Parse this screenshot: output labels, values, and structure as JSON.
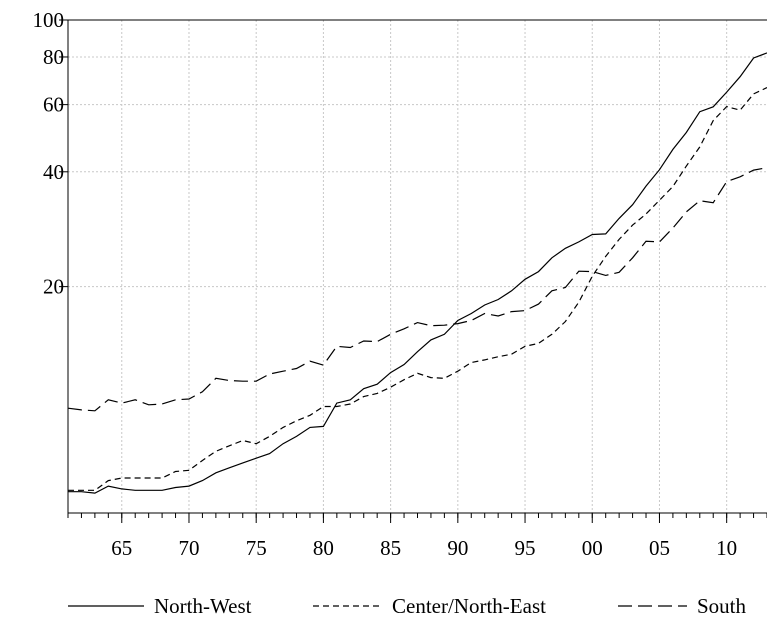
{
  "chart_data": {
    "type": "line",
    "title": "",
    "xlabel": "",
    "ylabel": "",
    "y_scale": "log",
    "ylim": [
      5.1,
      100
    ],
    "xlim": [
      1961,
      2013
    ],
    "grid": true,
    "legend_position": "bottom",
    "y_ticks": [
      {
        "value": 20,
        "label": "20"
      },
      {
        "value": 40,
        "label": "40"
      },
      {
        "value": 60,
        "label": "60"
      },
      {
        "value": 80,
        "label": "80"
      },
      {
        "value": 100,
        "label": "100"
      }
    ],
    "x_ticks": [
      {
        "value": 1965,
        "label": "65"
      },
      {
        "value": 1970,
        "label": "70"
      },
      {
        "value": 1975,
        "label": "75"
      },
      {
        "value": 1980,
        "label": "80"
      },
      {
        "value": 1985,
        "label": "85"
      },
      {
        "value": 1990,
        "label": "90"
      },
      {
        "value": 1995,
        "label": "95"
      },
      {
        "value": 2000,
        "label": "00"
      },
      {
        "value": 2005,
        "label": "05"
      },
      {
        "value": 2010,
        "label": "10"
      }
    ],
    "x": [
      1961,
      1962,
      1963,
      1964,
      1965,
      1966,
      1967,
      1968,
      1969,
      1970,
      1971,
      1972,
      1973,
      1974,
      1975,
      1976,
      1977,
      1978,
      1979,
      1980,
      1981,
      1982,
      1983,
      1984,
      1985,
      1986,
      1987,
      1988,
      1989,
      1990,
      1991,
      1992,
      1993,
      1994,
      1995,
      1996,
      1997,
      1998,
      1999,
      2000,
      2001,
      2002,
      2003,
      2004,
      2005,
      2006,
      2007,
      2008,
      2009,
      2010,
      2011,
      2012,
      2013
    ],
    "series": [
      {
        "name": "North-West",
        "dash": "solid",
        "values": [
          5.8,
          5.8,
          5.75,
          6.0,
          5.9,
          5.85,
          5.85,
          5.85,
          5.95,
          6.0,
          6.2,
          6.5,
          6.7,
          6.9,
          7.1,
          7.3,
          7.75,
          8.1,
          8.55,
          8.6,
          9.9,
          10.1,
          10.8,
          11.1,
          11.9,
          12.5,
          13.5,
          14.5,
          15.0,
          16.3,
          17.0,
          17.9,
          18.5,
          19.5,
          20.9,
          21.9,
          23.8,
          25.2,
          26.2,
          27.4,
          27.5,
          30.2,
          32.8,
          36.7,
          40.5,
          45.8,
          50.7,
          57.5,
          59.2,
          64.7,
          71.0,
          79.5,
          82.0
        ]
      },
      {
        "name": "Center/North-East",
        "dash": "6,4",
        "values": [
          5.85,
          5.85,
          5.85,
          6.2,
          6.3,
          6.3,
          6.3,
          6.3,
          6.55,
          6.6,
          7.0,
          7.4,
          7.65,
          7.9,
          7.75,
          8.1,
          8.55,
          8.9,
          9.2,
          9.7,
          9.7,
          9.85,
          10.3,
          10.5,
          10.9,
          11.4,
          11.85,
          11.55,
          11.5,
          12.0,
          12.65,
          12.85,
          13.1,
          13.3,
          13.95,
          14.2,
          15.0,
          16.2,
          18.2,
          21.3,
          24.0,
          26.6,
          29.0,
          31.0,
          33.7,
          36.6,
          41.4,
          46.5,
          54.5,
          59.3,
          58.0,
          64.0,
          66.5
        ]
      },
      {
        "name": "South",
        "dash": "14,6",
        "values": [
          9.6,
          9.5,
          9.45,
          10.1,
          9.9,
          10.1,
          9.8,
          9.85,
          10.1,
          10.15,
          10.6,
          11.5,
          11.35,
          11.3,
          11.3,
          11.8,
          12.0,
          12.2,
          12.75,
          12.45,
          13.95,
          13.85,
          14.4,
          14.35,
          15.0,
          15.5,
          16.1,
          15.8,
          15.85,
          16.0,
          16.3,
          17.0,
          16.75,
          17.2,
          17.3,
          18.0,
          19.5,
          19.9,
          21.95,
          21.9,
          21.4,
          21.8,
          23.8,
          26.3,
          26.2,
          28.5,
          31.4,
          33.6,
          33.2,
          37.7,
          38.8,
          40.4,
          41.0
        ]
      }
    ]
  }
}
